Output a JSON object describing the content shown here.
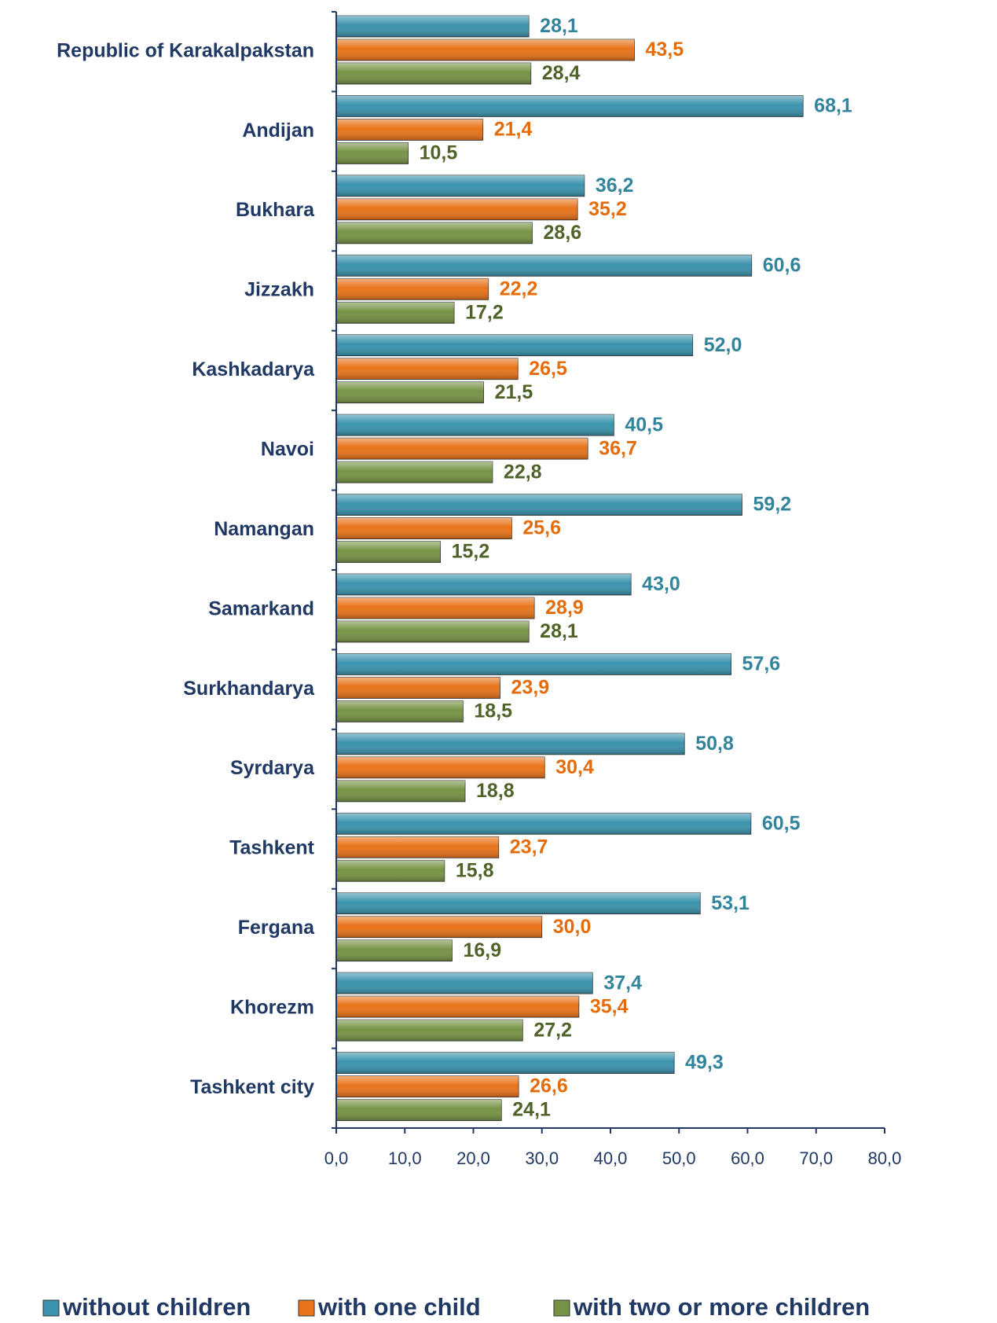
{
  "chart_data": {
    "type": "bar",
    "orientation": "horizontal",
    "categories": [
      "Republic of Karakalpakstan",
      "Andijan",
      "Bukhara",
      "Jizzakh",
      "Kashkadarya",
      "Navoi",
      "Namangan",
      "Samarkand",
      "Surkhandarya",
      "Syrdarya",
      "Tashkent",
      "Fergana",
      "Khorezm",
      "Tashkent city"
    ],
    "series": [
      {
        "name": "without children",
        "color": "#3b93ad",
        "label_color": "#31849b",
        "values": [
          28.1,
          68.1,
          36.2,
          60.6,
          52.0,
          40.5,
          59.2,
          43.0,
          57.6,
          50.8,
          60.5,
          53.1,
          37.4,
          49.3
        ],
        "value_labels": [
          "28,1",
          "68,1",
          "36,2",
          "60,6",
          "52,0",
          "40,5",
          "59,2",
          "43,0",
          "57,6",
          "50,8",
          "60,5",
          "53,1",
          "37,4",
          "49,3"
        ]
      },
      {
        "name": "with one child",
        "color": "#e8731a",
        "label_color": "#e46c0a",
        "values": [
          43.5,
          21.4,
          35.2,
          22.2,
          26.5,
          36.7,
          25.6,
          28.9,
          23.9,
          30.4,
          23.7,
          30.0,
          35.4,
          26.6
        ],
        "value_labels": [
          "43,5",
          "21,4",
          "35,2",
          "22,2",
          "26,5",
          "36,7",
          "25,6",
          "28,9",
          "23,9",
          "30,4",
          "23,7",
          "30,0",
          "35,4",
          "26,6"
        ]
      },
      {
        "name": "with two or more children",
        "color": "#769345",
        "label_color": "#4f6228",
        "values": [
          28.4,
          10.5,
          28.6,
          17.2,
          21.5,
          22.8,
          15.2,
          28.1,
          18.5,
          18.8,
          15.8,
          16.9,
          27.2,
          24.1
        ],
        "value_labels": [
          "28,4",
          "10,5",
          "28,6",
          "17,2",
          "21,5",
          "22,8",
          "15,2",
          "28,1",
          "18,5",
          "18,8",
          "15,8",
          "16,9",
          "27,2",
          "24,1"
        ]
      }
    ],
    "xlim": [
      0,
      80
    ],
    "xticks": [
      {
        "value": 0,
        "label": "0,0"
      },
      {
        "value": 10,
        "label": "10,0"
      },
      {
        "value": 20,
        "label": "20,0"
      },
      {
        "value": 30,
        "label": "30,0"
      },
      {
        "value": 40,
        "label": "40,0"
      },
      {
        "value": 50,
        "label": "50,0"
      },
      {
        "value": 60,
        "label": "60,0"
      },
      {
        "value": 70,
        "label": "70,0"
      },
      {
        "value": 80,
        "label": "80,0"
      }
    ],
    "grid": false,
    "legend": "bottom"
  }
}
